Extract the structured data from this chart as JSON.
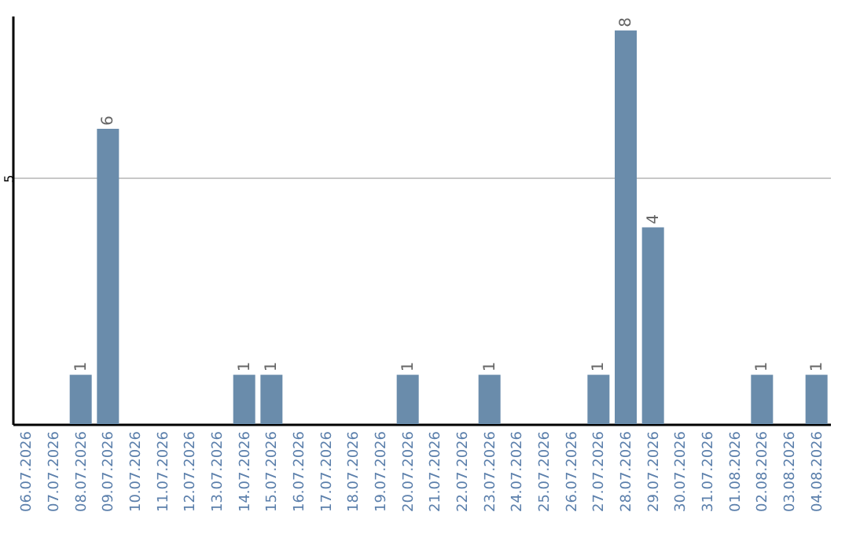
{
  "chart_data": {
    "type": "bar",
    "categories": [
      "06.07.2026",
      "07.07.2026",
      "08.07.2026",
      "09.07.2026",
      "10.07.2026",
      "11.07.2026",
      "12.07.2026",
      "13.07.2026",
      "14.07.2026",
      "15.07.2026",
      "16.07.2026",
      "17.07.2026",
      "18.07.2026",
      "19.07.2026",
      "20.07.2026",
      "21.07.2026",
      "22.07.2026",
      "23.07.2026",
      "24.07.2026",
      "25.07.2026",
      "26.07.2026",
      "27.07.2026",
      "28.07.2026",
      "29.07.2026",
      "30.07.2026",
      "31.07.2026",
      "01.08.2026",
      "02.08.2026",
      "03.08.2026",
      "04.08.2026"
    ],
    "values": [
      0,
      0,
      1,
      6,
      0,
      0,
      0,
      0,
      1,
      1,
      0,
      0,
      0,
      0,
      1,
      0,
      0,
      1,
      0,
      0,
      0,
      1,
      8,
      4,
      0,
      0,
      0,
      1,
      0,
      1
    ],
    "value_labels": [
      null,
      null,
      "1",
      "6",
      null,
      null,
      null,
      null,
      "1",
      "1",
      null,
      null,
      null,
      null,
      "1",
      null,
      null,
      "1",
      null,
      null,
      null,
      "1",
      "8",
      "4",
      null,
      null,
      null,
      "1",
      null,
      "1"
    ],
    "color": "#6a8cab",
    "ylim": [
      0,
      8.3
    ],
    "yticks": [
      5
    ],
    "grid": "y"
  }
}
